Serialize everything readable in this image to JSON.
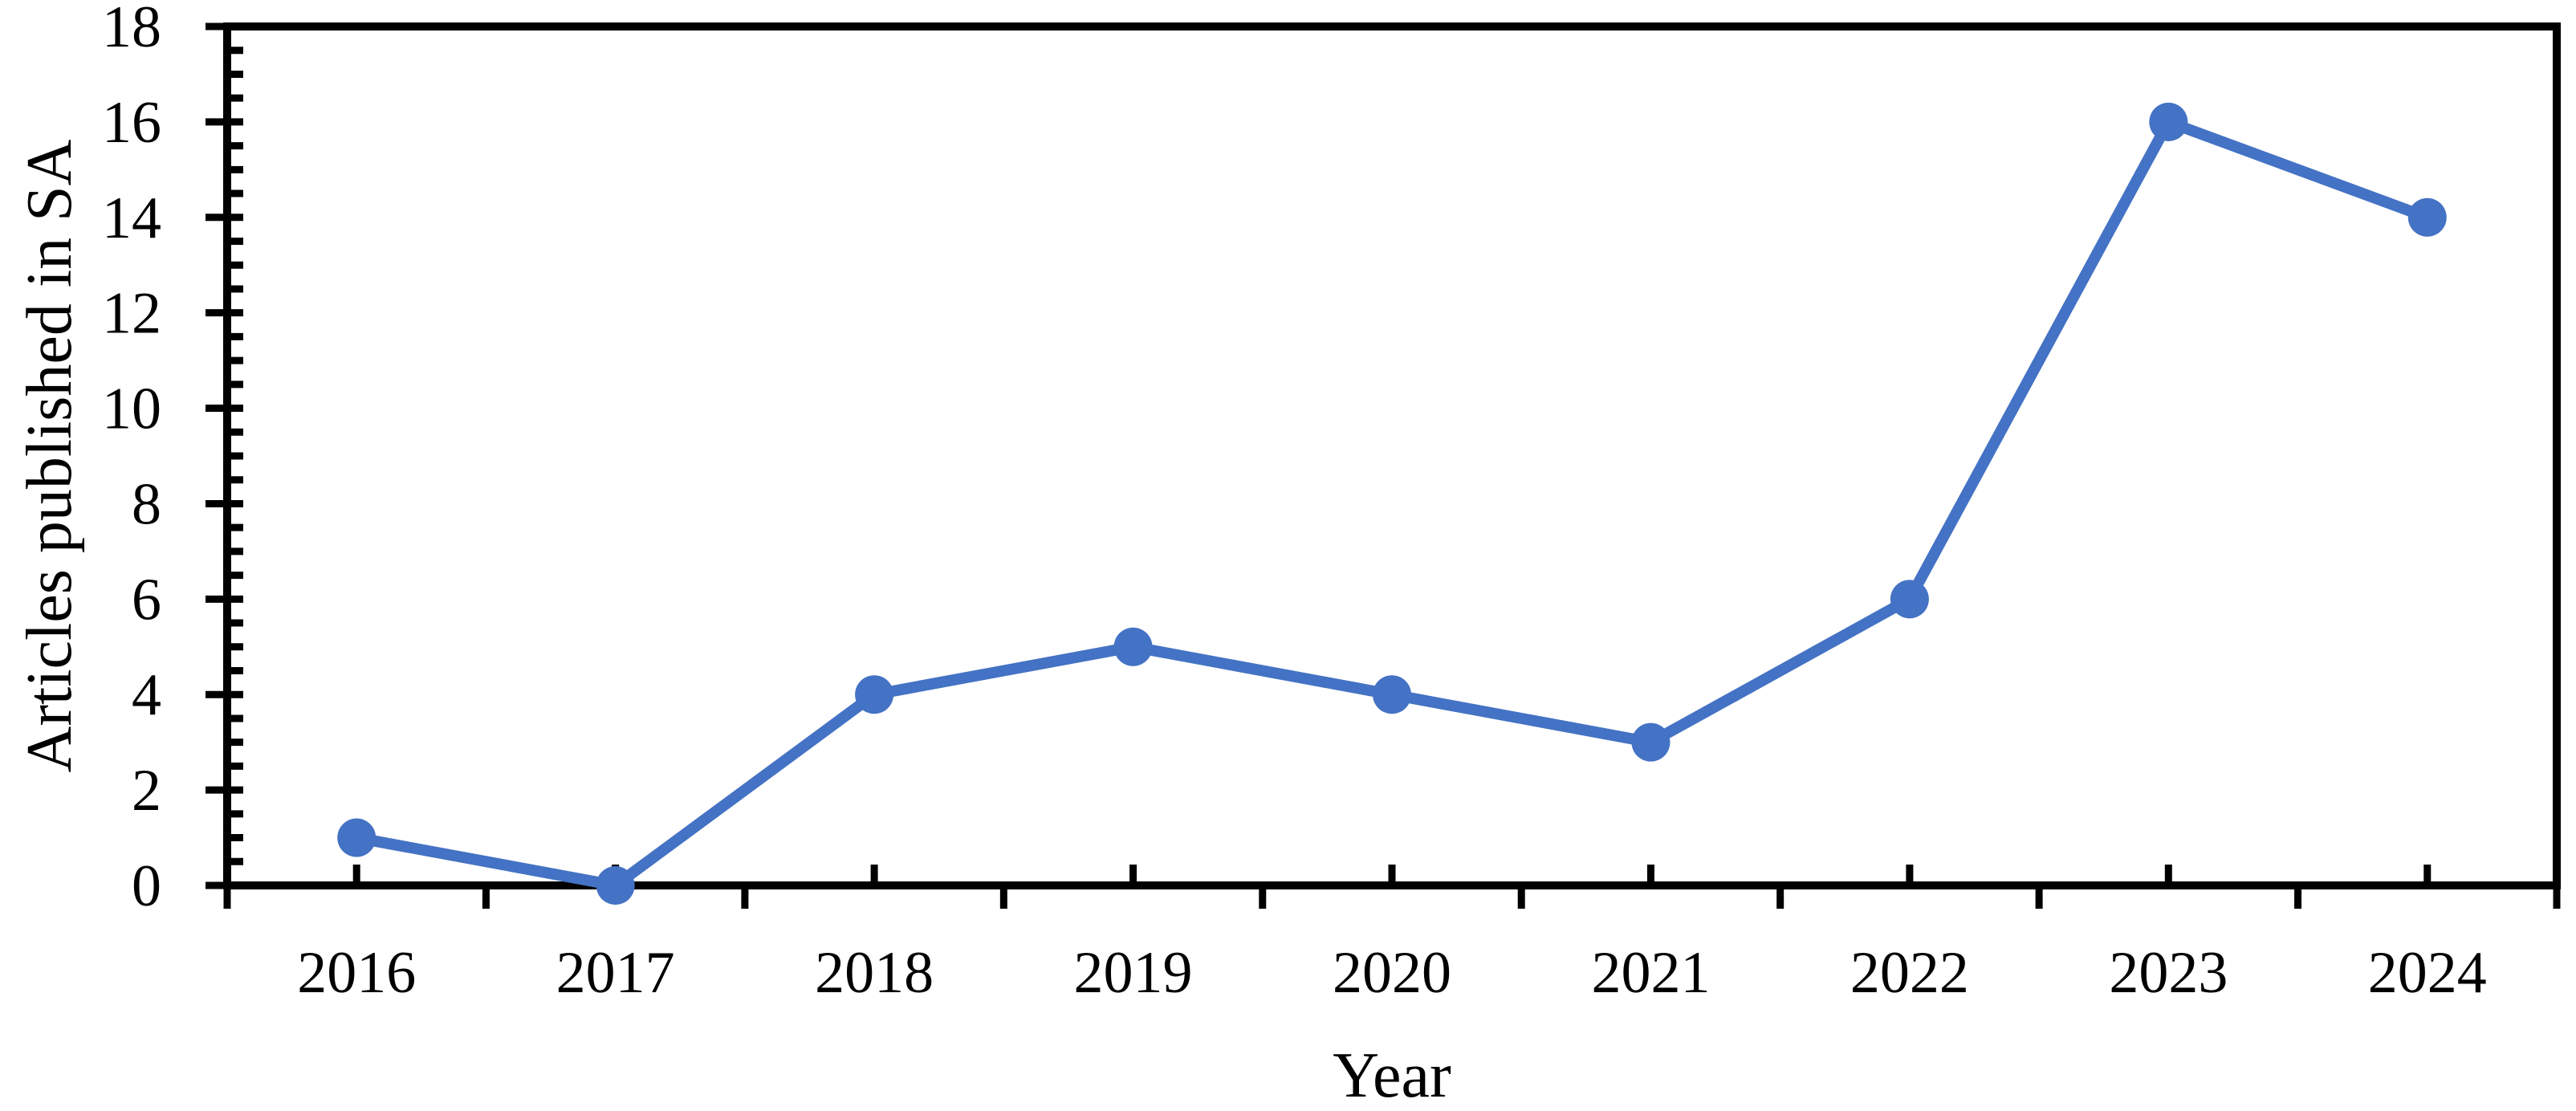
{
  "chart_data": {
    "type": "line",
    "title": "",
    "xlabel": "Year",
    "ylabel": "Articles published in SA",
    "categories": [
      "2016",
      "2017",
      "2018",
      "2019",
      "2020",
      "2021",
      "2022",
      "2023",
      "2024"
    ],
    "series": [
      {
        "name": "Articles published in SA",
        "values": [
          1,
          0,
          4,
          5,
          4,
          3,
          6,
          16,
          14
        ]
      }
    ],
    "ylim": [
      0,
      18
    ],
    "ytick_interval": 2,
    "yminor_tick_interval": 0.5,
    "ytick_labels": [
      "0",
      "2",
      "4",
      "6",
      "8",
      "10",
      "12",
      "14",
      "16",
      "18"
    ],
    "grid": "off",
    "legend": "none",
    "plot_border": "on",
    "colors": {
      "series": "#4472C4",
      "axis": "#000000",
      "text": "#000000",
      "background": "#FFFFFF"
    }
  }
}
